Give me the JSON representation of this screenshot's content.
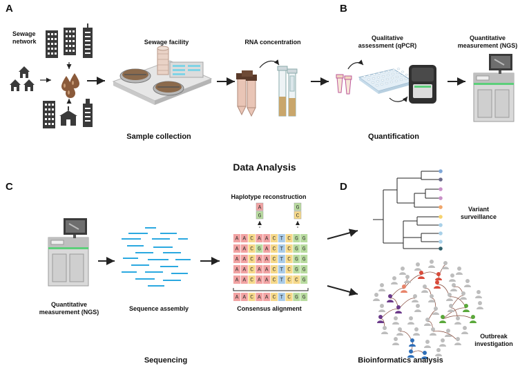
{
  "panels": [
    "A",
    "B",
    "C",
    "D"
  ],
  "labels": {
    "sewage_network": "Sewage\nnetwork",
    "sewage_facility": "Sewage facility",
    "rna_concentration": "RNA concentration",
    "qualitative": "Qualitative\nassessment (qPCR)",
    "quantitative_top": "Quantitative\nmeasurement (NGS)",
    "quantitative_bottom": "Quantitative\nmeasurement (NGS)",
    "haplotype": "Haplotype reconstruction",
    "sequence_assembly": "Sequence assembly",
    "consensus_alignment": "Consensus alignment",
    "variant_surveillance": "Variant\nsurveillance",
    "outbreak_investigation": "Outbreak\ninvestigation"
  },
  "captions": {
    "sample_collection": "Sample collection",
    "quantification": "Quantification",
    "data_analysis": "Data Analysis",
    "sequencing": "Sequencing",
    "bioinformatics": "Bioinformatics analysis"
  },
  "alignment": {
    "rows": [
      [
        "A",
        "A",
        "C",
        "A",
        "A",
        "C",
        "T",
        "C",
        "G",
        "G"
      ],
      [
        "A",
        "A",
        "C",
        "G",
        "A",
        "C",
        "T",
        "C",
        "G",
        "G"
      ],
      [
        "A",
        "A",
        "C",
        "A",
        "A",
        "C",
        "T",
        "C",
        "G",
        "G"
      ],
      [
        "A",
        "A",
        "C",
        "A",
        "A",
        "C",
        "T",
        "C",
        "G",
        "G"
      ],
      [
        "A",
        "A",
        "C",
        "A",
        "A",
        "C",
        "T",
        "C",
        "C",
        "G"
      ]
    ],
    "consensus": [
      "A",
      "A",
      "C",
      "A",
      "A",
      "C",
      "T",
      "C",
      "G",
      "G"
    ],
    "haplotypes": [
      [
        "A",
        "G"
      ],
      [
        "G",
        "C"
      ]
    ]
  },
  "colors": {
    "A": "#f2a3a3",
    "C": "#f6d98a",
    "G": "#b9dca0",
    "T": "#a9cbe8",
    "read": "#2aa8e0",
    "wastewater": "#8a5a3a",
    "monitor_green": "#5ccf7a"
  },
  "tree_tip_colors": [
    "#7fa7d8",
    "#6c6a8a",
    "#c991c8",
    "#c991c8",
    "#f0a56a",
    "#f6d36e",
    "#a8d0e8",
    "#a8d0e8",
    "#a8d0e8",
    "#2f5f6a"
  ],
  "icons": [
    "house-icon",
    "building-icon",
    "droplet-icon",
    "facility-icon",
    "tube-icon",
    "qpcr-plate-icon",
    "qpcr-machine-icon",
    "sequencer-icon",
    "person-icon"
  ]
}
